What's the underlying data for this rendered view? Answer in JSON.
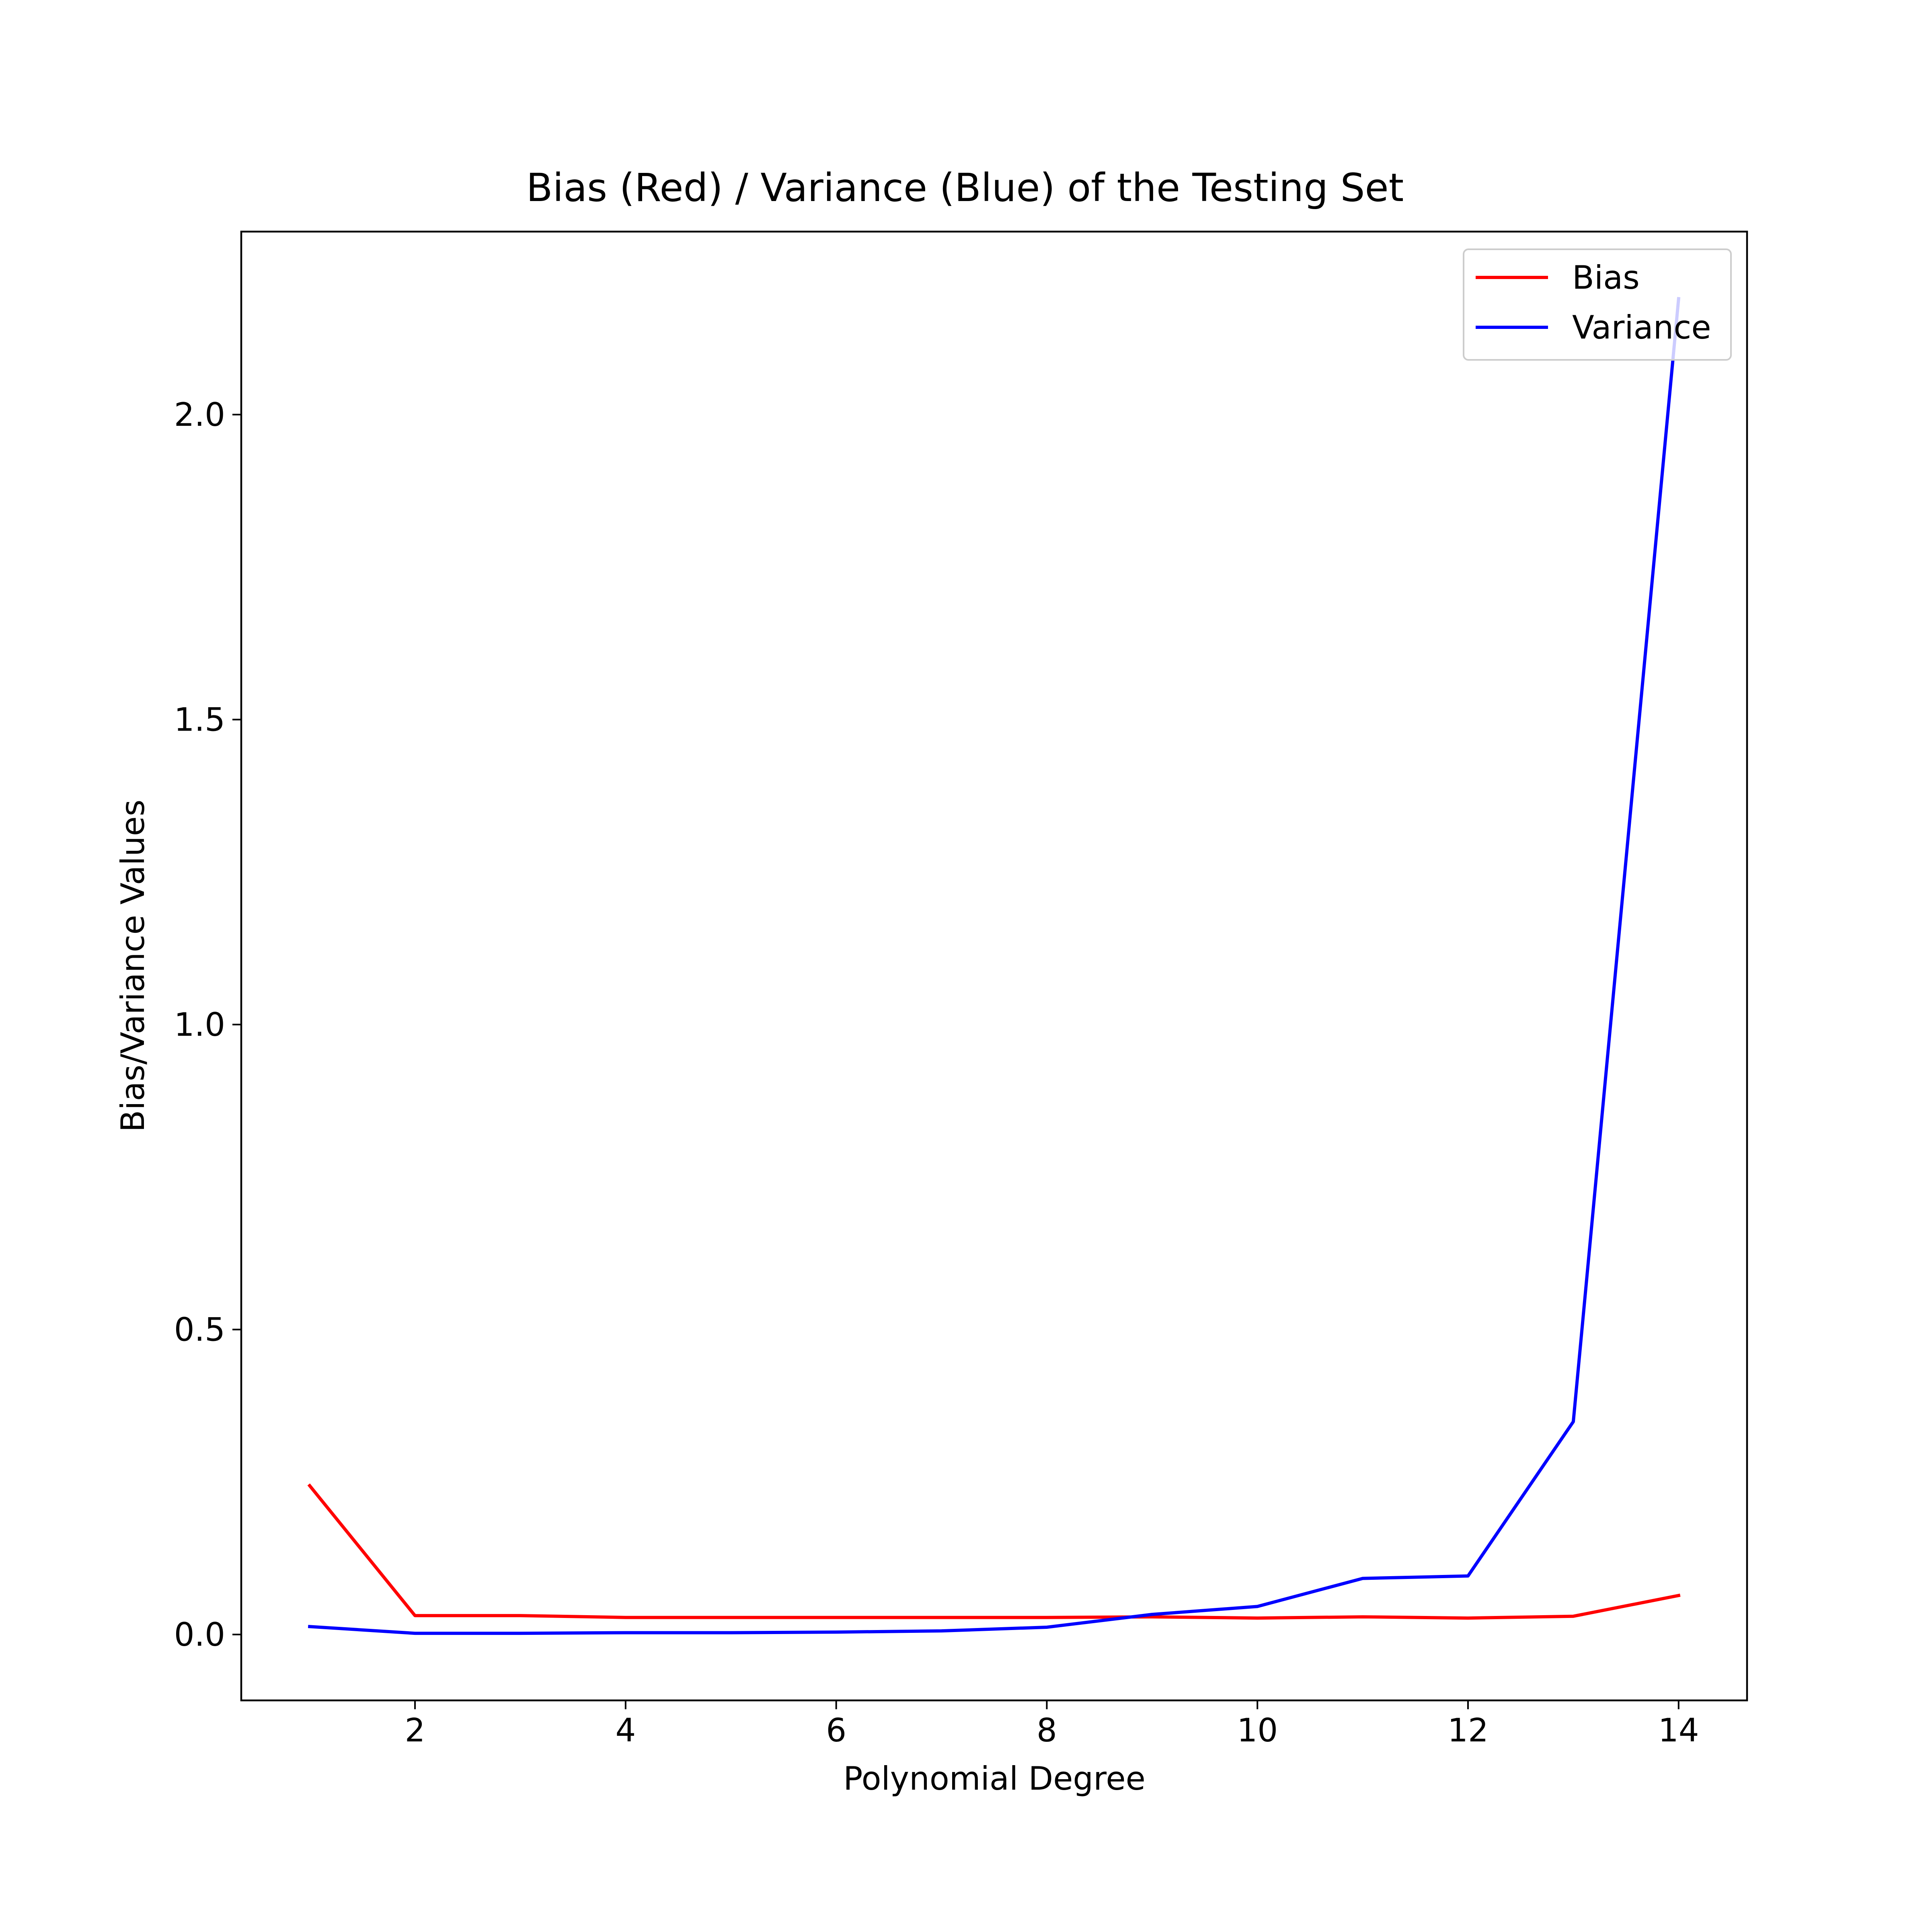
{
  "chart_data": {
    "type": "line",
    "title": "Bias (Red) / Variance (Blue) of the Testing Set",
    "xlabel": "Polynomial Degree",
    "ylabel": "Bias/Variance Values",
    "xlim": [
      0.35,
      14.65
    ],
    "ylim": [
      -0.108,
      2.3
    ],
    "xticks": [
      2,
      4,
      6,
      8,
      10,
      12,
      14
    ],
    "xtick_labels": [
      "2",
      "4",
      "6",
      "8",
      "10",
      "12",
      "14"
    ],
    "yticks": [
      0.0,
      0.5,
      1.0,
      1.5,
      2.0
    ],
    "ytick_labels": [
      "0.0",
      "0.5",
      "1.0",
      "1.5",
      "2.0"
    ],
    "grid": false,
    "legend_position": "top-right",
    "x": [
      1,
      2,
      3,
      4,
      5,
      6,
      7,
      8,
      9,
      10,
      11,
      12,
      13,
      14
    ],
    "series": [
      {
        "name": "Bias",
        "color": "#ff0000",
        "values": [
          0.244,
          0.031,
          0.031,
          0.028,
          0.028,
          0.028,
          0.028,
          0.028,
          0.029,
          0.027,
          0.029,
          0.027,
          0.03,
          0.064
        ]
      },
      {
        "name": "Variance",
        "color": "#0000ff",
        "values": [
          0.013,
          0.002,
          0.002,
          0.003,
          0.003,
          0.004,
          0.006,
          0.012,
          0.033,
          0.046,
          0.092,
          0.096,
          0.349,
          2.19
        ]
      }
    ]
  }
}
